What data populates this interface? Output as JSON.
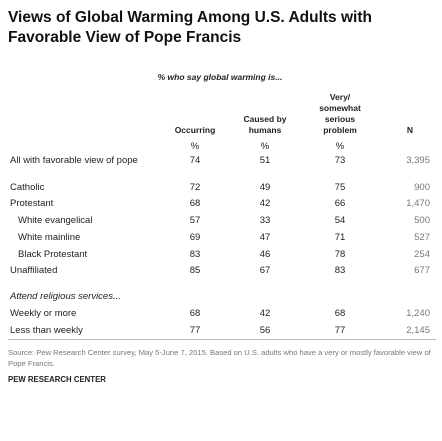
{
  "header": {
    "title": "Views of Global Warming Among U.S. Adults with Favorable View of Pope Francis"
  },
  "table": {
    "caption": "% who say global warming is...",
    "columns": [
      "Occurring",
      "Caused by humans",
      "Very/ somewhat serious problem",
      "N"
    ],
    "units": [
      "%",
      "%",
      "%"
    ],
    "rows": [
      {
        "label": "All with favorable view of pope",
        "values": [
          "74",
          "51",
          "73"
        ],
        "n": "3,395"
      },
      {
        "label": "Catholic",
        "values": [
          "72",
          "49",
          "75"
        ],
        "n": "900"
      },
      {
        "label": "Protestant",
        "values": [
          "68",
          "42",
          "66"
        ],
        "n": "1,470",
        "subrows": [
          {
            "label": "White evangelical",
            "values": [
              "57",
              "33",
              "54"
            ],
            "n": "500"
          },
          {
            "label": "White mainline",
            "values": [
              "69",
              "47",
              "71"
            ],
            "n": "527"
          },
          {
            "label": "Black Protestant",
            "values": [
              "83",
              "46",
              "78"
            ],
            "n": "254"
          }
        ]
      },
      {
        "label": "Unaffiliated",
        "values": [
          "85",
          "67",
          "83"
        ],
        "n": "677"
      }
    ],
    "section": {
      "heading": "Attend religious services...",
      "rows": [
        {
          "label": "Weekly or more",
          "values": [
            "68",
            "42",
            "68"
          ],
          "n": "1,240"
        },
        {
          "label": "Less than weekly",
          "values": [
            "77",
            "56",
            "77"
          ],
          "n": "2,145"
        }
      ]
    }
  },
  "footer": {
    "source": "Source: Pew Research Center survey, May 5-June 7, 2015. Based on U.S. adults who have a very or mostly favorable view of Pope Francis.",
    "brand": "PEW RESEARCH CENTER"
  }
}
